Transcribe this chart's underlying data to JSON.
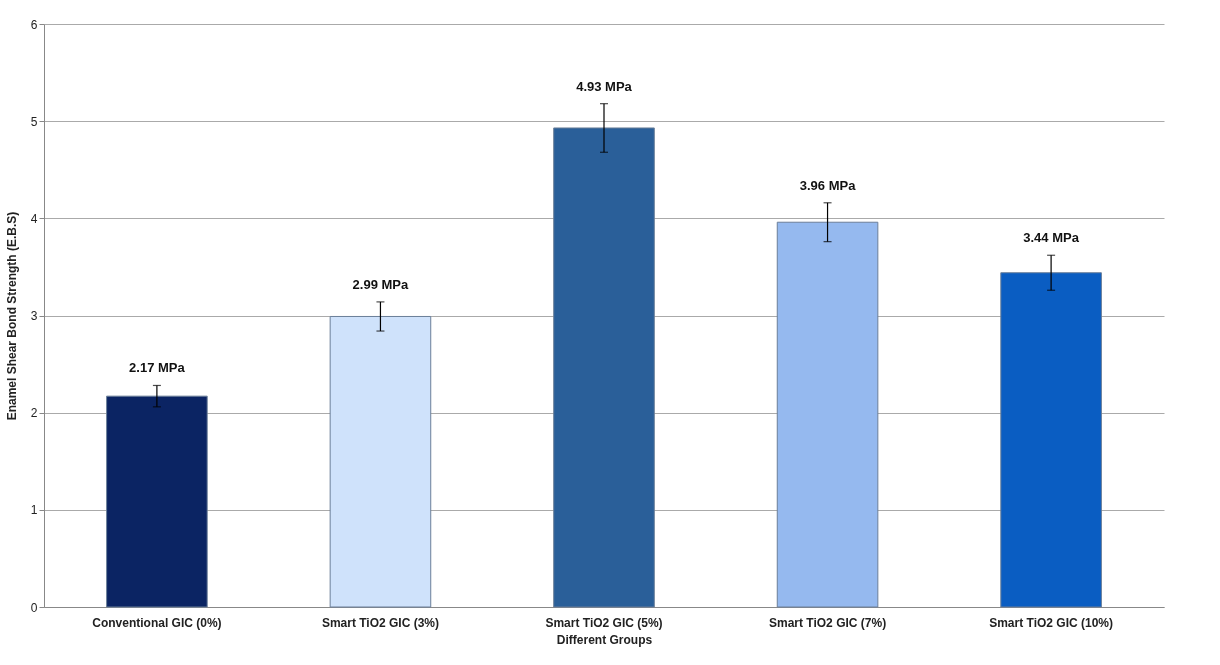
{
  "chart_data": {
    "type": "bar",
    "xlabel": "Different Groups",
    "ylabel": "Enamel Shear Bond Strength (E.B.S)",
    "categories": [
      "Conventional GIC (0%)",
      "Smart TiO2 GIC (3%)",
      "Smart TiO2 GIC (5%)",
      "Smart TiO2 GIC (7%)",
      "Smart TiO2 GIC (10%)"
    ],
    "values": [
      2.17,
      2.99,
      4.93,
      3.96,
      3.44
    ],
    "value_labels": [
      "2.17 MPa",
      "2.99 MPa",
      "4.93 MPa",
      "3.96 MPa",
      "3.44 MPa"
    ],
    "errors": [
      0.11,
      0.15,
      0.25,
      0.2,
      0.18
    ],
    "colors": [
      "#0b2463",
      "#cfe2fb",
      "#2a5f99",
      "#95b9ef",
      "#0a5dc2"
    ],
    "ylim": [
      0,
      6
    ],
    "yticks": [
      0,
      1,
      2,
      3,
      4,
      5,
      6
    ],
    "grid": "y"
  }
}
